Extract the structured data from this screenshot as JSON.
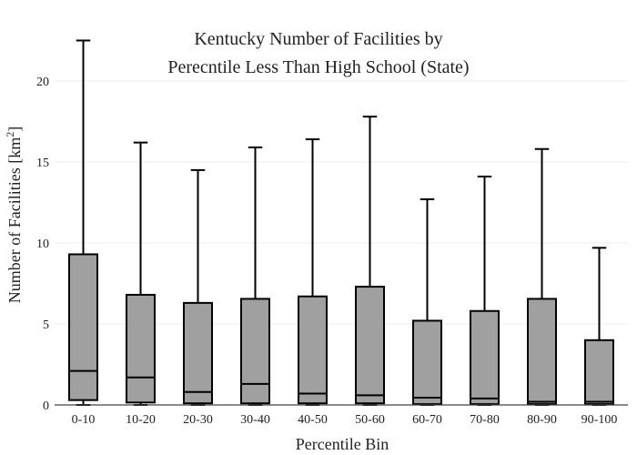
{
  "chart_data": {
    "type": "box",
    "title_lines": [
      "Kentucky Number of Facilities by",
      "Perecntile Less Than High School (State)"
    ],
    "xlabel": "Percentile Bin",
    "ylabel_main": "Number of Facilities  [km",
    "ylabel_sup": "2",
    "ylabel_end": "]",
    "ylim": [
      0,
      23
    ],
    "yticks": [
      0,
      5,
      10,
      15,
      20
    ],
    "grid": true,
    "box_color": "#a0a0a0",
    "categories": [
      "0-10",
      "10-20",
      "20-30",
      "30-40",
      "40-50",
      "50-60",
      "60-70",
      "70-80",
      "80-90",
      "90-100"
    ],
    "boxes": [
      {
        "min": 0,
        "q1": 0.3,
        "median": 2.1,
        "q3": 9.3,
        "max": 22.5
      },
      {
        "min": 0,
        "q1": 0.15,
        "median": 1.7,
        "q3": 6.8,
        "max": 16.2
      },
      {
        "min": 0,
        "q1": 0.1,
        "median": 0.8,
        "q3": 6.3,
        "max": 14.5
      },
      {
        "min": 0,
        "q1": 0.1,
        "median": 1.3,
        "q3": 6.55,
        "max": 15.9
      },
      {
        "min": 0,
        "q1": 0.1,
        "median": 0.7,
        "q3": 6.7,
        "max": 16.4
      },
      {
        "min": 0,
        "q1": 0.1,
        "median": 0.6,
        "q3": 7.3,
        "max": 17.8
      },
      {
        "min": 0,
        "q1": 0.05,
        "median": 0.45,
        "q3": 5.2,
        "max": 12.7
      },
      {
        "min": 0,
        "q1": 0.05,
        "median": 0.4,
        "q3": 5.8,
        "max": 14.1
      },
      {
        "min": 0,
        "q1": 0.05,
        "median": 0.2,
        "q3": 6.55,
        "max": 15.8
      },
      {
        "min": 0,
        "q1": 0.05,
        "median": 0.2,
        "q3": 4.0,
        "max": 9.7
      }
    ]
  }
}
